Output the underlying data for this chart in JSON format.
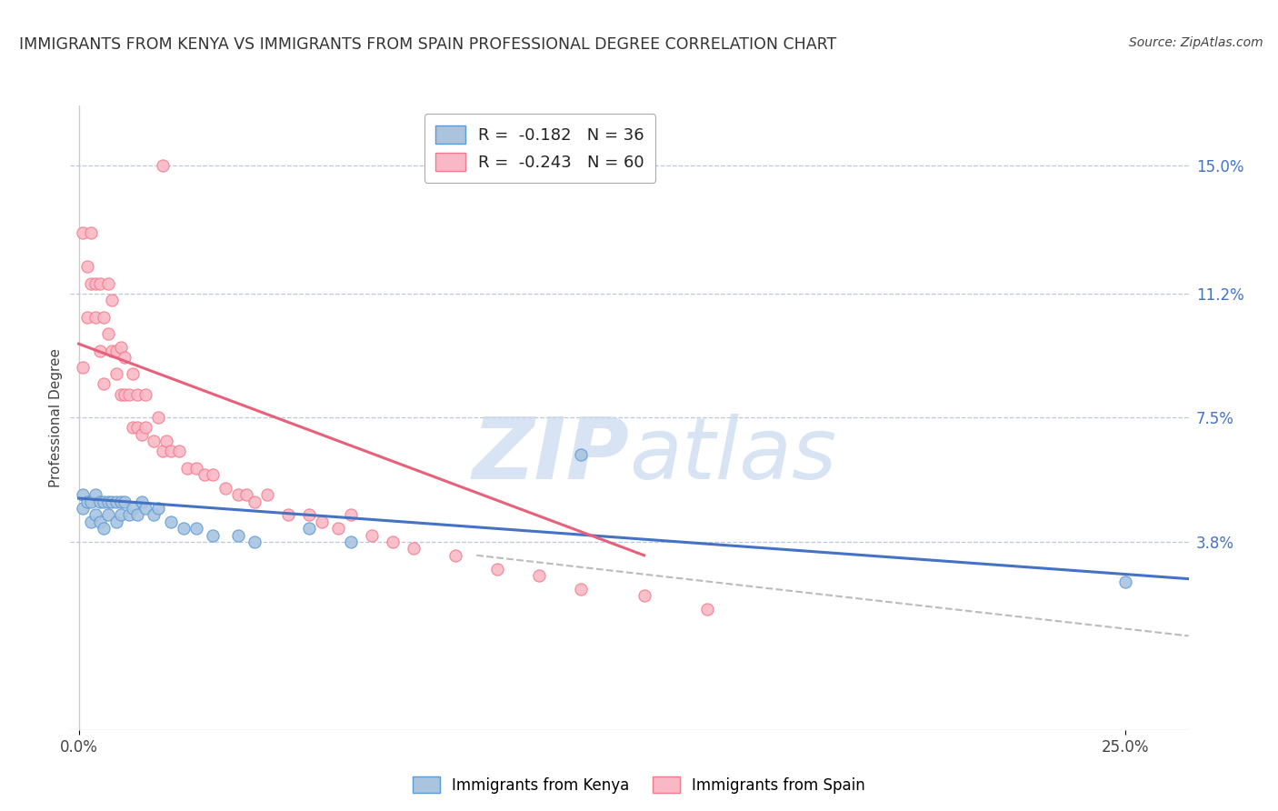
{
  "title": "IMMIGRANTS FROM KENYA VS IMMIGRANTS FROM SPAIN PROFESSIONAL DEGREE CORRELATION CHART",
  "source": "Source: ZipAtlas.com",
  "ylabel": "Professional Degree",
  "y_tick_right": [
    0.038,
    0.075,
    0.112,
    0.15
  ],
  "y_tick_right_labels": [
    "3.8%",
    "7.5%",
    "11.2%",
    "15.0%"
  ],
  "xlim": [
    -0.002,
    0.265
  ],
  "ylim": [
    -0.018,
    0.168
  ],
  "legend_kenya": "R =  -0.182   N = 36",
  "legend_spain": "R =  -0.243   N = 60",
  "kenya_color": "#aac4e0",
  "spain_color": "#f9b8c6",
  "kenya_edge_color": "#5b9bd5",
  "spain_edge_color": "#f47a8a",
  "kenya_line_color": "#4472c4",
  "spain_line_color": "#e8607a",
  "kenya_scatter_x": [
    0.001,
    0.001,
    0.002,
    0.003,
    0.003,
    0.004,
    0.004,
    0.005,
    0.005,
    0.006,
    0.006,
    0.007,
    0.007,
    0.008,
    0.009,
    0.009,
    0.01,
    0.01,
    0.011,
    0.012,
    0.013,
    0.014,
    0.015,
    0.016,
    0.018,
    0.019,
    0.022,
    0.025,
    0.028,
    0.032,
    0.038,
    0.042,
    0.055,
    0.065,
    0.25,
    0.12
  ],
  "kenya_scatter_y": [
    0.048,
    0.052,
    0.05,
    0.044,
    0.05,
    0.046,
    0.052,
    0.044,
    0.05,
    0.042,
    0.05,
    0.046,
    0.05,
    0.05,
    0.044,
    0.05,
    0.05,
    0.046,
    0.05,
    0.046,
    0.048,
    0.046,
    0.05,
    0.048,
    0.046,
    0.048,
    0.044,
    0.042,
    0.042,
    0.04,
    0.04,
    0.038,
    0.042,
    0.038,
    0.026,
    0.064
  ],
  "spain_scatter_x": [
    0.001,
    0.001,
    0.002,
    0.002,
    0.003,
    0.003,
    0.004,
    0.004,
    0.005,
    0.005,
    0.006,
    0.006,
    0.007,
    0.007,
    0.008,
    0.008,
    0.009,
    0.009,
    0.01,
    0.01,
    0.011,
    0.011,
    0.012,
    0.013,
    0.013,
    0.014,
    0.014,
    0.015,
    0.016,
    0.016,
    0.018,
    0.019,
    0.02,
    0.021,
    0.022,
    0.024,
    0.026,
    0.028,
    0.03,
    0.032,
    0.035,
    0.038,
    0.04,
    0.042,
    0.045,
    0.05,
    0.055,
    0.058,
    0.062,
    0.065,
    0.07,
    0.075,
    0.08,
    0.09,
    0.1,
    0.11,
    0.12,
    0.135,
    0.15,
    0.02
  ],
  "spain_scatter_y": [
    0.13,
    0.09,
    0.105,
    0.12,
    0.115,
    0.13,
    0.105,
    0.115,
    0.095,
    0.115,
    0.085,
    0.105,
    0.1,
    0.115,
    0.095,
    0.11,
    0.088,
    0.095,
    0.082,
    0.096,
    0.082,
    0.093,
    0.082,
    0.072,
    0.088,
    0.072,
    0.082,
    0.07,
    0.072,
    0.082,
    0.068,
    0.075,
    0.065,
    0.068,
    0.065,
    0.065,
    0.06,
    0.06,
    0.058,
    0.058,
    0.054,
    0.052,
    0.052,
    0.05,
    0.052,
    0.046,
    0.046,
    0.044,
    0.042,
    0.046,
    0.04,
    0.038,
    0.036,
    0.034,
    0.03,
    0.028,
    0.024,
    0.022,
    0.018,
    0.15
  ],
  "kenya_trend_x": [
    0.0,
    0.265
  ],
  "kenya_trend_y": [
    0.051,
    0.027
  ],
  "spain_trend_x": [
    0.0,
    0.135
  ],
  "spain_trend_y": [
    0.097,
    0.034
  ],
  "dashed_line_x": [
    0.095,
    0.265
  ],
  "dashed_line_y": [
    0.034,
    0.01
  ]
}
